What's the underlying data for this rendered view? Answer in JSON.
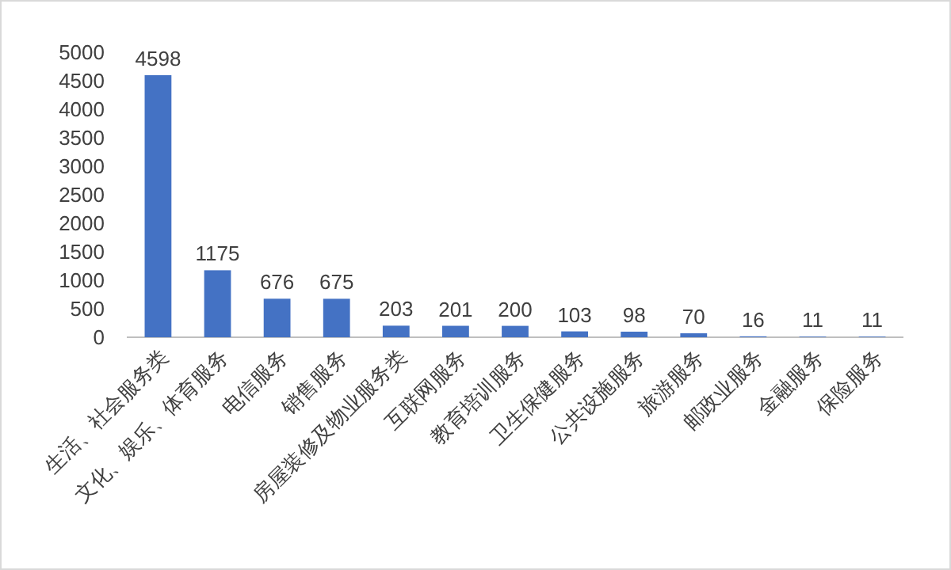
{
  "chart_data": {
    "type": "bar",
    "categories": [
      "生活、社会服务类",
      "文化、娱乐、体育服务",
      "电信服务",
      "销售服务",
      "房屋装修及物业服务类",
      "互联网服务",
      "教育培训服务",
      "卫生保健服务",
      "公共设施服务",
      "旅游服务",
      "邮政业服务",
      "金融服务",
      "保险服务"
    ],
    "values": [
      4598,
      1175,
      676,
      675,
      203,
      201,
      200,
      103,
      98,
      70,
      16,
      11,
      11
    ],
    "color": "#4472c4",
    "ylim": [
      0,
      5000
    ],
    "yticks": [
      0,
      500,
      1000,
      1500,
      2000,
      2500,
      3000,
      3500,
      4000,
      4500,
      5000
    ],
    "grid": false,
    "data_labels": true
  }
}
